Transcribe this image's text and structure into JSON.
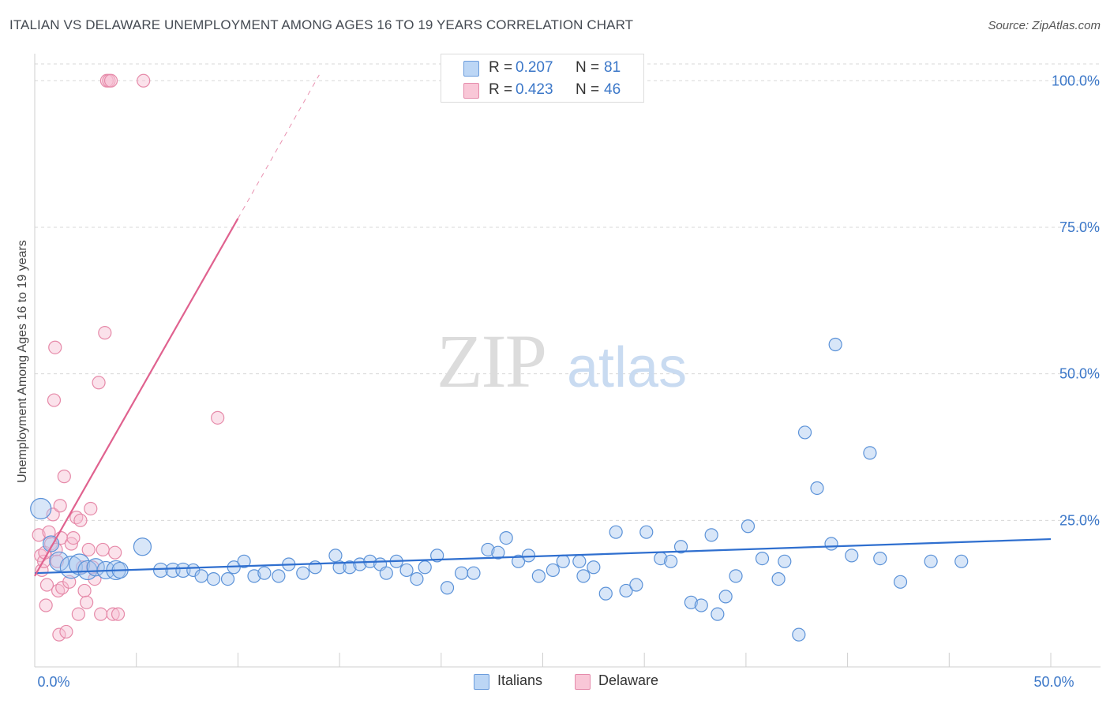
{
  "title": "ITALIAN VS DELAWARE UNEMPLOYMENT AMONG AGES 16 TO 19 YEARS CORRELATION CHART",
  "source": "Source: ZipAtlas.com",
  "watermark": {
    "zip": "ZIP",
    "atlas": "atlas"
  },
  "colors": {
    "italians_fill": "#a8c8f0",
    "italians_stroke": "#5b92d8",
    "italians_line": "#2f6fcf",
    "delaware_fill": "#f7bfd2",
    "delaware_stroke": "#e68aa9",
    "delaware_line": "#e0628f",
    "tick_label": "#3b77c8",
    "grid": "#d8d8d8"
  },
  "legend_top": [
    {
      "r_label": "R =",
      "r_value": "0.207",
      "n_label": "N =",
      "n_value": "81"
    },
    {
      "r_label": "R =",
      "r_value": "0.423",
      "n_label": "N =",
      "n_value": "46"
    }
  ],
  "legend_bottom": [
    {
      "label": "Italians"
    },
    {
      "label": "Delaware"
    }
  ],
  "chart_data": {
    "type": "scatter",
    "title": "ITALIAN VS DELAWARE UNEMPLOYMENT AMONG AGES 16 TO 19 YEARS CORRELATION CHART",
    "xlabel": "",
    "ylabel": "Unemployment Among Ages 16 to 19 years",
    "xlim": [
      0,
      50
    ],
    "ylim": [
      0,
      103
    ],
    "x_tick_labels": [
      {
        "value": 0,
        "label": "0.0%"
      },
      {
        "value": 50,
        "label": "50.0%"
      }
    ],
    "y_tick_labels": [
      {
        "value": 25,
        "label": "25.0%"
      },
      {
        "value": 50,
        "label": "50.0%"
      },
      {
        "value": 75,
        "label": "75.0%"
      },
      {
        "value": 100,
        "label": "100.0%"
      }
    ],
    "grid": true,
    "series": [
      {
        "name": "Italians",
        "points": [
          [
            0.3,
            27,
            13
          ],
          [
            0.8,
            21,
            10
          ],
          [
            1.2,
            18,
            12
          ],
          [
            1.8,
            17,
            14
          ],
          [
            2.2,
            17.5,
            13
          ],
          [
            2.6,
            16.5,
            12
          ],
          [
            3.0,
            17,
            11
          ],
          [
            3.5,
            16.5,
            11
          ],
          [
            4.0,
            16.5,
            12
          ],
          [
            4.2,
            16.5,
            10
          ],
          [
            5.3,
            20.5,
            11
          ],
          [
            6.2,
            16.5,
            9
          ],
          [
            6.8,
            16.5,
            9
          ],
          [
            7.3,
            16.5,
            9
          ],
          [
            7.8,
            16.5,
            8
          ],
          [
            8.2,
            15.5,
            8
          ],
          [
            8.8,
            15,
            8
          ],
          [
            9.5,
            15,
            8
          ],
          [
            9.8,
            17,
            8
          ],
          [
            10.3,
            18,
            8
          ],
          [
            10.8,
            15.5,
            8
          ],
          [
            11.3,
            16,
            8
          ],
          [
            12.0,
            15.5,
            8
          ],
          [
            12.5,
            17.5,
            8
          ],
          [
            13.2,
            16,
            8
          ],
          [
            13.8,
            17,
            8
          ],
          [
            14.8,
            19,
            8
          ],
          [
            15.0,
            17,
            8
          ],
          [
            15.5,
            17,
            8
          ],
          [
            16.0,
            17.5,
            8
          ],
          [
            16.5,
            18,
            8
          ],
          [
            17.0,
            17.5,
            8
          ],
          [
            17.3,
            16,
            8
          ],
          [
            17.8,
            18,
            8
          ],
          [
            18.3,
            16.5,
            8
          ],
          [
            18.8,
            15,
            8
          ],
          [
            19.2,
            17,
            8
          ],
          [
            19.8,
            19,
            8
          ],
          [
            20.3,
            13.5,
            8
          ],
          [
            21.0,
            16,
            8
          ],
          [
            21.6,
            16,
            8
          ],
          [
            22.3,
            20,
            8
          ],
          [
            22.8,
            19.5,
            8
          ],
          [
            23.2,
            22,
            8
          ],
          [
            23.8,
            18,
            8
          ],
          [
            24.3,
            19,
            8
          ],
          [
            24.8,
            15.5,
            8
          ],
          [
            25.5,
            16.5,
            8
          ],
          [
            26.0,
            18,
            8
          ],
          [
            26.8,
            18,
            8
          ],
          [
            27.0,
            15.5,
            8
          ],
          [
            27.5,
            17,
            8
          ],
          [
            28.1,
            12.5,
            8
          ],
          [
            28.6,
            23,
            8
          ],
          [
            29.1,
            13,
            8
          ],
          [
            29.6,
            14,
            8
          ],
          [
            30.1,
            23,
            8
          ],
          [
            30.8,
            18.5,
            8
          ],
          [
            31.3,
            18,
            8
          ],
          [
            31.8,
            20.5,
            8
          ],
          [
            32.3,
            11,
            8
          ],
          [
            32.8,
            10.5,
            8
          ],
          [
            33.3,
            22.5,
            8
          ],
          [
            33.6,
            9,
            8
          ],
          [
            34.0,
            12,
            8
          ],
          [
            34.5,
            15.5,
            8
          ],
          [
            35.1,
            24,
            8
          ],
          [
            35.8,
            18.5,
            8
          ],
          [
            36.6,
            15,
            8
          ],
          [
            36.9,
            18,
            8
          ],
          [
            37.6,
            5.5,
            8
          ],
          [
            37.9,
            40,
            8
          ],
          [
            38.5,
            30.5,
            8
          ],
          [
            39.2,
            21,
            8
          ],
          [
            39.4,
            55,
            8
          ],
          [
            40.2,
            19,
            8
          ],
          [
            41.1,
            36.5,
            8
          ],
          [
            41.6,
            18.5,
            8
          ],
          [
            42.6,
            14.5,
            8
          ],
          [
            44.1,
            18,
            8
          ],
          [
            45.6,
            18,
            8
          ]
        ]
      },
      {
        "name": "Delaware",
        "points": [
          [
            0.2,
            22.5,
            8
          ],
          [
            0.3,
            19,
            8
          ],
          [
            0.35,
            16.5,
            8
          ],
          [
            0.45,
            18,
            8
          ],
          [
            0.5,
            19.5,
            8
          ],
          [
            0.55,
            10.5,
            8
          ],
          [
            0.6,
            14,
            8
          ],
          [
            0.7,
            23,
            8
          ],
          [
            0.8,
            21,
            8
          ],
          [
            0.9,
            26,
            8
          ],
          [
            0.95,
            45.5,
            8
          ],
          [
            1.0,
            54.5,
            8
          ],
          [
            1.05,
            20,
            8
          ],
          [
            1.1,
            18,
            8
          ],
          [
            1.15,
            13,
            8
          ],
          [
            1.2,
            5.5,
            8
          ],
          [
            1.25,
            27.5,
            8
          ],
          [
            1.3,
            22,
            8
          ],
          [
            1.35,
            13.5,
            8
          ],
          [
            1.45,
            32.5,
            8
          ],
          [
            1.55,
            6,
            8
          ],
          [
            1.7,
            14.5,
            8
          ],
          [
            1.8,
            21,
            8
          ],
          [
            1.9,
            22,
            8
          ],
          [
            2.05,
            25.5,
            8
          ],
          [
            2.15,
            9,
            8
          ],
          [
            2.25,
            25,
            8
          ],
          [
            2.35,
            17,
            8
          ],
          [
            2.45,
            13,
            8
          ],
          [
            2.55,
            11,
            8
          ],
          [
            2.65,
            20,
            8
          ],
          [
            2.75,
            27,
            8
          ],
          [
            2.85,
            17,
            8
          ],
          [
            2.95,
            15,
            8
          ],
          [
            3.15,
            48.5,
            8
          ],
          [
            3.25,
            9,
            8
          ],
          [
            3.35,
            20,
            8
          ],
          [
            3.45,
            57,
            8
          ],
          [
            3.55,
            100,
            8
          ],
          [
            3.65,
            100,
            8
          ],
          [
            3.75,
            100,
            8
          ],
          [
            3.85,
            9,
            8
          ],
          [
            3.95,
            19.5,
            8
          ],
          [
            4.1,
            9,
            8
          ],
          [
            5.35,
            100,
            8
          ],
          [
            9.0,
            42.5,
            8
          ]
        ]
      }
    ],
    "trend_lines": [
      {
        "series": "Italians",
        "x": [
          0,
          50
        ],
        "y": [
          16.0,
          21.8
        ],
        "style": "solid"
      },
      {
        "series": "Delaware",
        "x": [
          0,
          10
        ],
        "y": [
          15.5,
          76.5
        ],
        "style": "solid"
      },
      {
        "series": "Delaware",
        "x": [
          10,
          14
        ],
        "y": [
          76.5,
          101
        ],
        "style": "dashed"
      }
    ]
  }
}
